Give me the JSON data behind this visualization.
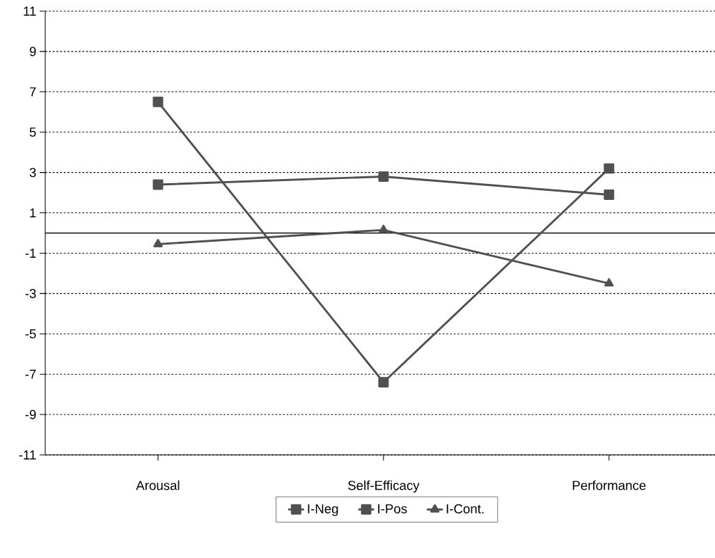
{
  "chart_data": {
    "type": "line",
    "categories": [
      "Arousal",
      "Self-Efficacy",
      "Performance"
    ],
    "series": [
      {
        "name": "I-Neg",
        "color": "#505050",
        "marker": "square",
        "values": [
          6.5,
          -7.4,
          3.2
        ]
      },
      {
        "name": "I-Pos",
        "color": "#505050",
        "marker": "square",
        "values": [
          2.4,
          2.8,
          1.9
        ]
      },
      {
        "name": "I-Cont.",
        "color": "#505050",
        "marker": "triangle",
        "values": [
          -0.55,
          0.15,
          -2.5
        ]
      }
    ],
    "ylim": [
      -11,
      11
    ],
    "yticks": [
      -11,
      -9,
      -7,
      -5,
      -3,
      -1,
      1,
      3,
      5,
      7,
      9,
      11
    ],
    "grid": "y",
    "legend": "bottom",
    "line_style": "solid",
    "ref_lines": [
      {
        "axis": "y",
        "value": 0,
        "color": "#000000"
      }
    ]
  }
}
